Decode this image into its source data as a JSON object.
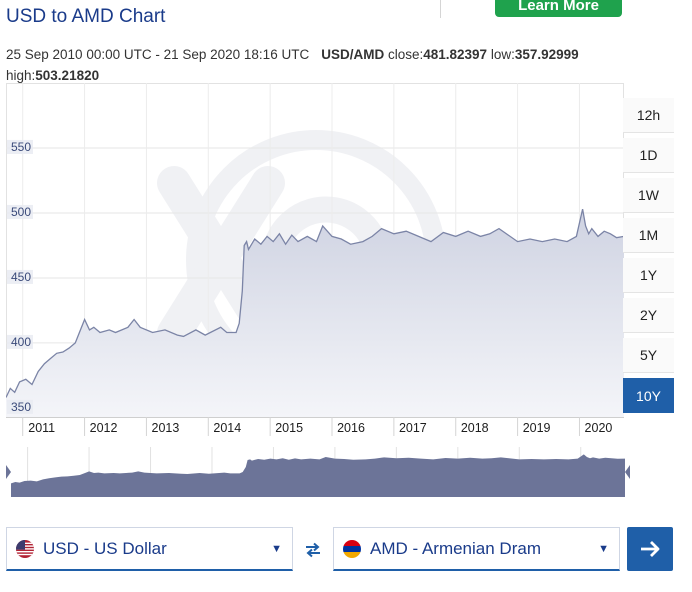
{
  "header": {
    "title": "USD to AMD Chart",
    "cta_label": "Learn More"
  },
  "summary": {
    "range_text": "25 Sep 2010 00:00 UTC - 21 Sep 2020 18:16 UTC",
    "pair": "USD/AMD",
    "close_label": "close:",
    "close_value": "481.82397",
    "low_label": "low:",
    "low_value": "357.92999",
    "high_label": "high:",
    "high_value": "503.21820"
  },
  "range_buttons": [
    {
      "label": "12h",
      "active": false
    },
    {
      "label": "1D",
      "active": false
    },
    {
      "label": "1W",
      "active": false
    },
    {
      "label": "1M",
      "active": false
    },
    {
      "label": "1Y",
      "active": false
    },
    {
      "label": "2Y",
      "active": false
    },
    {
      "label": "5Y",
      "active": false
    },
    {
      "label": "10Y",
      "active": true
    }
  ],
  "converter": {
    "from_label": "USD - US Dollar",
    "from_flag": "us-flag-icon",
    "to_label": "AMD - Armenian Dram",
    "to_flag": "am-flag-icon",
    "swap_icon": "swap-arrows-icon",
    "go_icon": "arrow-right-icon"
  },
  "colors": {
    "accent": "#1f5fa8",
    "line": "#7b84a6",
    "fill": "#e3e5ee",
    "navigator": "#6c7498",
    "cta": "#1fa24d"
  },
  "chart_data": {
    "type": "area",
    "x_ticks": [
      "2011",
      "2012",
      "2013",
      "2014",
      "2015",
      "2016",
      "2017",
      "2018",
      "2019",
      "2020"
    ],
    "y_ticks": [
      350,
      400,
      450,
      500,
      550
    ],
    "ylim": [
      343,
      600
    ],
    "xlim": [
      2010.73,
      2020.72
    ],
    "grid": true,
    "series": [
      {
        "x": [
          2010.73,
          2010.8,
          2010.87,
          2010.95,
          2011.05,
          2011.15,
          2011.25,
          2011.35,
          2011.45,
          2011.55,
          2011.65,
          2011.75,
          2011.85,
          2011.95,
          2012.0,
          2012.08,
          2012.15,
          2012.25,
          2012.4,
          2012.5,
          2012.7,
          2012.8,
          2012.9,
          2013.1,
          2013.3,
          2013.5,
          2013.6,
          2013.8,
          2013.95,
          2014.2,
          2014.3,
          2014.45,
          2014.5,
          2014.55,
          2014.58,
          2014.62,
          2014.65,
          2014.75,
          2014.85,
          2014.95,
          2015.05,
          2015.15,
          2015.25,
          2015.35,
          2015.45,
          2015.6,
          2015.75,
          2015.85,
          2016.0,
          2016.15,
          2016.3,
          2016.5,
          2016.65,
          2016.8,
          2017.0,
          2017.2,
          2017.4,
          2017.6,
          2017.8,
          2018.0,
          2018.2,
          2018.4,
          2018.55,
          2018.7,
          2018.85,
          2019.0,
          2019.2,
          2019.4,
          2019.6,
          2019.8,
          2019.95,
          2020.05,
          2020.1,
          2020.15,
          2020.2,
          2020.3,
          2020.4,
          2020.5,
          2020.6,
          2020.72
        ],
        "y": [
          358,
          365,
          362,
          370,
          372,
          368,
          378,
          384,
          388,
          392,
          393,
          396,
          400,
          412,
          418,
          410,
          412,
          408,
          410,
          408,
          412,
          418,
          412,
          408,
          410,
          406,
          405,
          410,
          406,
          412,
          408,
          408,
          415,
          440,
          475,
          478,
          472,
          480,
          476,
          482,
          478,
          484,
          476,
          483,
          478,
          482,
          478,
          490,
          482,
          480,
          476,
          478,
          482,
          488,
          484,
          486,
          482,
          478,
          485,
          482,
          486,
          482,
          484,
          488,
          483,
          478,
          480,
          478,
          480,
          478,
          482,
          503,
          490,
          484,
          488,
          482,
          486,
          484,
          481,
          482
        ]
      }
    ]
  }
}
